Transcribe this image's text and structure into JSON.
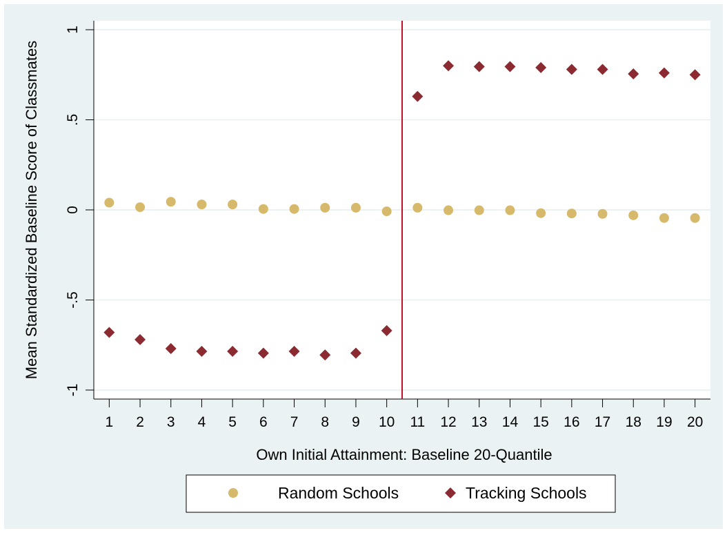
{
  "chart_data": {
    "type": "scatter",
    "xlabel": "Own Initial Attainment:  Baseline 20-Quantile",
    "ylabel": "Mean Standardized Baseline Score of Classmates",
    "xlim": [
      0.5,
      20.5
    ],
    "ylim": [
      -1.05,
      1.05
    ],
    "x_ticks": [
      "1",
      "2",
      "3",
      "4",
      "5",
      "6",
      "7",
      "8",
      "9",
      "10",
      "11",
      "12",
      "13",
      "14",
      "15",
      "16",
      "17",
      "18",
      "19",
      "20"
    ],
    "y_ticks": [
      {
        "value": -1,
        "label": "-1"
      },
      {
        "value": -0.5,
        "label": "-.5"
      },
      {
        "value": 0,
        "label": "0"
      },
      {
        "value": 0.5,
        "label": ".5"
      },
      {
        "value": 1,
        "label": "1"
      }
    ],
    "grid": "horizontal",
    "reference_line": {
      "x": 10.5,
      "color": "#c0102a"
    },
    "legend_position": "bottom",
    "x": [
      1,
      2,
      3,
      4,
      5,
      6,
      7,
      8,
      9,
      10,
      11,
      12,
      13,
      14,
      15,
      16,
      17,
      18,
      19,
      20
    ],
    "series": [
      {
        "name": "Random Schools",
        "marker": "circle",
        "color": "#d6b96a",
        "values": [
          0.04,
          0.015,
          0.045,
          0.03,
          0.03,
          0.005,
          0.005,
          0.012,
          0.012,
          -0.008,
          0.012,
          -0.002,
          -0.002,
          -0.002,
          -0.018,
          -0.02,
          -0.022,
          -0.03,
          -0.045,
          -0.045
        ]
      },
      {
        "name": "Tracking Schools",
        "marker": "diamond",
        "color": "#8c2a32",
        "values": [
          -0.68,
          -0.72,
          -0.77,
          -0.785,
          -0.785,
          -0.795,
          -0.785,
          -0.805,
          -0.795,
          -0.67,
          0.63,
          0.8,
          0.795,
          0.795,
          0.79,
          0.78,
          0.78,
          0.755,
          0.76,
          0.75
        ]
      }
    ]
  }
}
